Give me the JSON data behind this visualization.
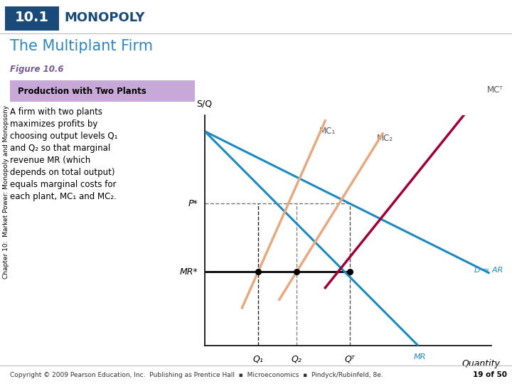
{
  "title_box": "10.1",
  "title_main": "MONOPOLY",
  "subtitle": "The Multiplant Firm",
  "figure_label": "Figure 10.6",
  "box_label": "Production with Two Plants",
  "description_lines": [
    "A firm with two plants",
    "maximizes profits by",
    "choosing output levels Q₁",
    "and Q₂ so that marginal",
    "revenue MR (which",
    "depends on total output)",
    "equals marginal costs for",
    "each plant, MC₁ and MC₂."
  ],
  "ylabel": "S/Q",
  "xlabel": "Quantity",
  "sidebar_text": "Chapter 10:  Market Power: Monopoly and Monopsony",
  "footer": "Copyright 2009 Pearson Education, Inc.  Publishing as Prentice Hall   Microeconomics   Pindyck/Rubinfeld, 8e.",
  "page": "19 of 50",
  "bg_color": "#ffffff",
  "header_box_color": "#1a4a7a",
  "header_text_color": "#1a4a7a",
  "subtitle_color": "#2e86c1",
  "figure_label_color": "#7a5a9a",
  "prod_box_bg": "#c8a8d8",
  "prod_box_text": "#000000",
  "mc1_color": "#e8a880",
  "mct_color": "#a0003a",
  "demand_color": "#1a8abf",
  "mr_color": "#1a8abf",
  "dot_color": "#000000",
  "dar_slope": -0.62,
  "dar_intercept": 9.3,
  "mr_slope": -1.25,
  "mr_intercept": 9.3,
  "mc1_slope": 2.8,
  "mc1_intercept": -2.0,
  "mc1_x_start": 1.3,
  "mc1_x_end": 4.2,
  "mc2_slope": 2.0,
  "mc2_intercept": -3.2,
  "mc2_x_start": 2.6,
  "mc2_x_end": 6.2,
  "mct_slope": 1.55,
  "mct_intercept": -4.0,
  "mct_x_start": 4.2,
  "mct_x_end": 9.9,
  "MR_star_y": 3.2,
  "xlim": [
    0,
    10
  ],
  "ylim": [
    0,
    10
  ],
  "ann_MC1": "MC₁",
  "ann_MC2": "MC₂",
  "ann_MCT": "MCᵀ",
  "ann_DAR": "D = AR",
  "ann_MR": "MR",
  "ann_Pstar": "P*",
  "ann_MRstar": "MR*",
  "ann_Q1": "Q₁",
  "ann_Q2": "Q₂",
  "ann_QT": "Qᵀ"
}
